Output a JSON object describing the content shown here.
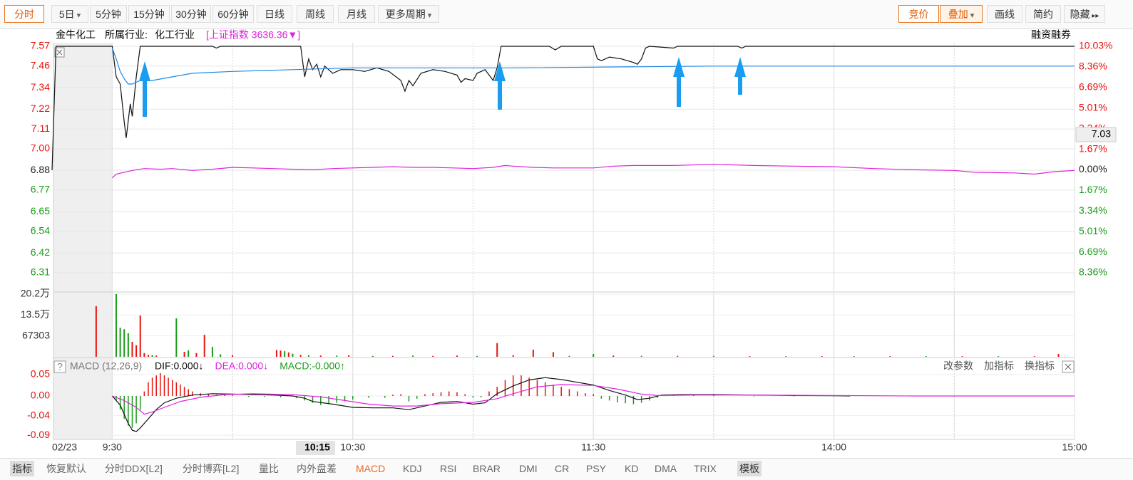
{
  "toolbar": {
    "left": [
      "分时",
      "5日",
      "5分钟",
      "15分钟",
      "30分钟",
      "60分钟",
      "日线",
      "周线",
      "月线",
      "更多周期"
    ],
    "right": [
      "竞价",
      "叠加",
      "画线",
      "简约",
      "隐藏"
    ]
  },
  "header": {
    "stock": "金牛化工",
    "industry_label": "所属行业:",
    "industry": "化工行业",
    "index_overlay": "[上证指数 3636.36▼]",
    "margin_trading": "融资融券"
  },
  "crosshair": {
    "price": "7.03",
    "time": "10:15"
  },
  "chart_data": [
    {
      "type": "line",
      "xlim": [
        -15,
        240
      ],
      "xticks": [
        {
          "value": -15,
          "label": "02/23"
        },
        {
          "value": 0,
          "label": "9:30"
        },
        {
          "value": 60,
          "label": "10:30"
        },
        {
          "value": 120,
          "label": "11:30"
        },
        {
          "value": 180,
          "label": "14:00"
        },
        {
          "value": 240,
          "label": "15:00"
        }
      ],
      "ylim": [
        6.31,
        7.57
      ],
      "yticks": [
        7.57,
        7.46,
        7.34,
        7.22,
        7.11,
        {
          "value": 7.0,
          "label": "7.00"
        },
        6.88,
        6.77,
        6.65,
        6.54,
        6.42,
        6.31
      ],
      "y2lim": [
        -8.36,
        10.03
      ],
      "y2ticks": [
        {
          "value": 10.03,
          "label": "10.03%"
        },
        {
          "value": 8.36,
          "label": "8.36%"
        },
        {
          "value": 6.69,
          "label": "6.69%"
        },
        {
          "value": 5.01,
          "label": "5.01%"
        },
        {
          "value": 3.34,
          "label": "3.34%"
        },
        {
          "value": 1.67,
          "label": "1.67%"
        },
        {
          "value": 0,
          "label": "0.00%"
        },
        {
          "value": -1.67,
          "label": "1.67%"
        },
        {
          "value": -3.34,
          "label": "3.34%"
        },
        {
          "value": -5.01,
          "label": "5.01%"
        },
        {
          "value": -6.69,
          "label": "6.69%"
        },
        {
          "value": -8.36,
          "label": "8.36%"
        }
      ],
      "grid": true,
      "up_color": "#e8120c",
      "down_color": "#1a9b1a",
      "series": [
        {
          "color": "#111111",
          "x": [
            -15,
            -14,
            0,
            1,
            2,
            3,
            3.5,
            4.5,
            5,
            6,
            7,
            25,
            26,
            27,
            47,
            48,
            49,
            50,
            51,
            52,
            53,
            55,
            57,
            60,
            63,
            66,
            69,
            72,
            73,
            74,
            75,
            77,
            80,
            83,
            86,
            87,
            88,
            90,
            91,
            93,
            95,
            96,
            97,
            109,
            110.5,
            112,
            120,
            121,
            122,
            124,
            127,
            130,
            131,
            132,
            133,
            134,
            140,
            141,
            156,
            157,
            158,
            240
          ],
          "values": [
            6.88,
            7.57,
            7.57,
            7.4,
            7.36,
            7.15,
            7.06,
            7.25,
            7.18,
            7.4,
            7.57,
            7.57,
            7.56,
            7.57,
            7.57,
            7.4,
            7.5,
            7.44,
            7.47,
            7.4,
            7.46,
            7.42,
            7.44,
            7.44,
            7.43,
            7.45,
            7.43,
            7.38,
            7.32,
            7.38,
            7.35,
            7.42,
            7.44,
            7.43,
            7.41,
            7.37,
            7.39,
            7.38,
            7.42,
            7.44,
            7.38,
            7.45,
            7.57,
            7.57,
            7.55,
            7.57,
            7.57,
            7.5,
            7.49,
            7.51,
            7.5,
            7.48,
            7.47,
            7.5,
            7.56,
            7.57,
            7.56,
            7.57,
            7.57,
            7.56,
            7.57,
            7.57
          ]
        },
        {
          "color": "#1e88e5",
          "x": [
            0,
            1,
            2,
            3,
            4,
            5,
            7,
            10,
            15,
            20,
            30,
            45,
            60,
            100,
            150,
            240
          ],
          "values": [
            7.56,
            7.5,
            7.43,
            7.39,
            7.36,
            7.36,
            7.38,
            7.38,
            7.4,
            7.42,
            7.43,
            7.44,
            7.45,
            7.45,
            7.46,
            7.46
          ]
        },
        {
          "color": "#e020e0",
          "axis": "y2",
          "x": [
            0,
            1,
            3,
            5,
            8,
            12,
            15,
            20,
            25,
            30,
            35,
            40,
            45,
            50,
            55,
            60,
            65,
            70,
            75,
            80,
            85,
            90,
            95,
            98,
            100,
            105,
            110,
            120,
            125,
            130,
            140,
            150,
            160,
            170,
            180,
            190,
            200,
            210,
            215,
            225,
            230,
            235,
            240
          ],
          "values": [
            -0.65,
            -0.35,
            -0.2,
            -0.05,
            0.1,
            0.05,
            0.1,
            -0.05,
            0.05,
            0.2,
            0.15,
            0.1,
            0.05,
            0,
            0.1,
            0.15,
            0.2,
            0.25,
            0.2,
            0.2,
            0.15,
            0.1,
            0.2,
            0.35,
            0.3,
            0.2,
            0.15,
            0.15,
            0.3,
            0.35,
            0.35,
            0.45,
            0.35,
            0.3,
            0.25,
            0.1,
            0,
            -0.05,
            -0.2,
            -0.25,
            -0.35,
            -0.15,
            -0.05
          ]
        }
      ]
    },
    {
      "type": "bar",
      "xlim": [
        -15,
        240
      ],
      "ylim": [
        0,
        202000
      ],
      "yticks": [
        {
          "value": 202000,
          "label": "20.2万"
        },
        {
          "value": 135000,
          "label": "13.5万"
        },
        67303
      ],
      "x": [
        -4,
        1,
        2,
        3,
        4,
        5,
        6,
        7,
        8,
        9,
        10,
        11,
        16,
        18,
        19,
        21,
        23,
        25,
        27,
        30,
        41,
        42,
        43,
        44,
        45,
        47,
        49,
        52,
        56,
        59,
        65,
        70,
        75,
        80,
        86,
        91,
        96,
        100,
        105,
        110,
        114,
        120,
        125,
        132,
        141,
        150,
        159,
        168,
        177,
        185,
        194,
        203,
        212,
        221,
        230,
        236
      ],
      "values": [
        163000,
        202000,
        94000,
        89000,
        76000,
        48000,
        37000,
        133000,
        12000,
        6000,
        5000,
        4000,
        124000,
        16000,
        21000,
        12000,
        71000,
        32000,
        8000,
        5000,
        22000,
        20000,
        18000,
        14000,
        10000,
        6000,
        5000,
        4000,
        4000,
        5000,
        3000,
        3000,
        4000,
        3000,
        4000,
        3000,
        44000,
        5000,
        23000,
        15000,
        3000,
        9000,
        4000,
        3000,
        3000,
        3000,
        2000,
        2000,
        2000,
        2000,
        2000,
        2000,
        2000,
        2000,
        2000,
        9000
      ],
      "colors": [
        "#e8120c",
        "#1a9b1a",
        "#1a9b1a",
        "#1a9b1a",
        "#1a9b1a",
        "#e8120c",
        "#e8120c",
        "#e8120c",
        "#e8120c",
        "#e8120c",
        "#1a9b1a",
        "#e8120c",
        "#1a9b1a",
        "#e8120c",
        "#1a9b1a",
        "#e8120c",
        "#e8120c",
        "#1a9b1a",
        "#1a9b1a",
        "#e8120c",
        "#e8120c",
        "#e8120c",
        "#1a9b1a",
        "#e8120c",
        "#1a9b1a",
        "#e8120c",
        "#1a9b1a",
        "#e8120c",
        "#1a9b1a",
        "#e8120c",
        "#1a9b1a",
        "#e8120c",
        "#1a9b1a",
        "#e8120c",
        "#e8120c",
        "#1a9b1a",
        "#e8120c",
        "#e8120c",
        "#e8120c",
        "#e8120c",
        "#1a9b1a",
        "#1a9b1a",
        "#e8120c",
        "#1a9b1a",
        "#e8120c",
        "#1a9b1a",
        "#e8120c",
        "#1a9b1a",
        "#e8120c",
        "#1a9b1a",
        "#e8120c",
        "#1a9b1a",
        "#e8120c",
        "#1a9b1a",
        "#e8120c",
        "#e8120c"
      ]
    },
    {
      "type": "macd",
      "title": "MACD (12,26,9)",
      "xlim": [
        -15,
        240
      ],
      "ylim": [
        -0.092,
        0.053
      ],
      "yticks": [
        {
          "value": 0.047,
          "label": "0.05"
        },
        {
          "value": 0,
          "label": "0.00"
        },
        {
          "value": -0.043,
          "label": "-0.04"
        },
        {
          "value": -0.086,
          "label": "-0.09"
        }
      ],
      "tick_color": "#e8120c",
      "up_color": "#e8120c",
      "down_color": "#1a9b1a",
      "series": [
        {
          "name": "DIF:0.000↓",
          "color": "#111111",
          "kind": "line",
          "x": [
            0,
            2,
            4,
            5,
            6,
            7,
            9,
            11,
            13,
            16,
            20,
            25,
            30,
            40,
            45,
            48,
            50,
            55,
            60,
            65,
            70,
            74,
            78,
            82,
            86,
            90,
            93,
            96,
            100,
            104,
            108,
            112,
            116,
            120,
            124,
            128,
            131,
            134,
            137,
            142,
            150,
            160,
            170,
            180,
            184
          ],
          "values": [
            0,
            -0.02,
            -0.06,
            -0.075,
            -0.078,
            -0.07,
            -0.05,
            -0.03,
            -0.015,
            -0.005,
            0.002,
            0.005,
            0.004,
            0.002,
            0,
            -0.005,
            -0.012,
            -0.018,
            -0.025,
            -0.026,
            -0.026,
            -0.03,
            -0.022,
            -0.014,
            -0.012,
            -0.018,
            -0.015,
            0.005,
            0.022,
            0.035,
            0.04,
            0.036,
            0.03,
            0.024,
            0.012,
            0.002,
            -0.008,
            -0.005,
            0.002,
            0.003,
            0.003,
            0.002,
            0.001,
            0.0005,
            0
          ]
        },
        {
          "name": "DEA:0.000↓",
          "color": "#e020e0",
          "kind": "line",
          "x": [
            0,
            3,
            6,
            8,
            10,
            13,
            17,
            22,
            28,
            35,
            45,
            52,
            58,
            64,
            70,
            76,
            82,
            90,
            96,
            100,
            106,
            112,
            120,
            126,
            132,
            136,
            145,
            160,
            180,
            200,
            240
          ],
          "values": [
            0,
            -0.01,
            -0.025,
            -0.04,
            -0.035,
            -0.025,
            -0.012,
            -0.003,
            0.003,
            0.005,
            0.003,
            -0.002,
            -0.01,
            -0.018,
            -0.022,
            -0.022,
            -0.017,
            -0.014,
            -0.006,
            0.005,
            0.02,
            0.025,
            0.023,
            0.015,
            0.004,
            0.001,
            0.002,
            0.002,
            0.001,
            0,
            0
          ]
        },
        {
          "name": "MACD:-0.000↑",
          "color": "#1a9b1a",
          "kind": "bar",
          "x": [
            1,
            2,
            3,
            4,
            5,
            6,
            7,
            8,
            9,
            10,
            11,
            12,
            13,
            14,
            15,
            16,
            17,
            18,
            19,
            20,
            22,
            24,
            26,
            28,
            30,
            34,
            38,
            42,
            46,
            48,
            50,
            52,
            54,
            56,
            58,
            60,
            64,
            68,
            70,
            72,
            74,
            76,
            78,
            80,
            82,
            84,
            86,
            88,
            90,
            92,
            94,
            96,
            98,
            100,
            102,
            104,
            106,
            108,
            110,
            112,
            114,
            116,
            118,
            120,
            122,
            124,
            126,
            128,
            130,
            132,
            134,
            136,
            140,
            145,
            150,
            160,
            170,
            180
          ],
          "values": [
            -0.01,
            -0.03,
            -0.05,
            -0.065,
            -0.07,
            -0.06,
            -0.03,
            0.01,
            0.03,
            0.04,
            0.045,
            0.05,
            0.045,
            0.04,
            0.035,
            0.03,
            0.025,
            0.02,
            0.015,
            0.01,
            0.006,
            0.004,
            0.003,
            0.002,
            0.002,
            -0.002,
            -0.002,
            -0.003,
            -0.005,
            -0.01,
            -0.015,
            -0.02,
            -0.018,
            -0.015,
            -0.012,
            -0.008,
            -0.004,
            -0.004,
            0.003,
            0.004,
            -0.012,
            -0.006,
            0.004,
            0.006,
            0.008,
            0.01,
            0.008,
            0.004,
            -0.004,
            -0.003,
            0.01,
            0.02,
            0.035,
            0.045,
            0.045,
            0.04,
            0.035,
            0.03,
            0.025,
            0.02,
            0.015,
            0.01,
            0.006,
            0.004,
            -0.006,
            -0.01,
            -0.014,
            -0.016,
            -0.018,
            -0.015,
            -0.01,
            -0.004,
            0.002,
            0.002,
            0.002,
            -0.001,
            -0.001,
            -0.001
          ]
        }
      ]
    }
  ],
  "indicator_panel": {
    "actions": [
      "改参数",
      "加指标",
      "换指标"
    ]
  },
  "tabs": [
    "指标",
    "恢复默认",
    "分时DDX[L2]",
    "分时博弈[L2]",
    "量比",
    "内外盘差",
    "MACD",
    "KDJ",
    "RSI",
    "BRAR",
    "DMI",
    "CR",
    "PSY",
    "KD",
    "DMA",
    "TRIX",
    "模板"
  ]
}
